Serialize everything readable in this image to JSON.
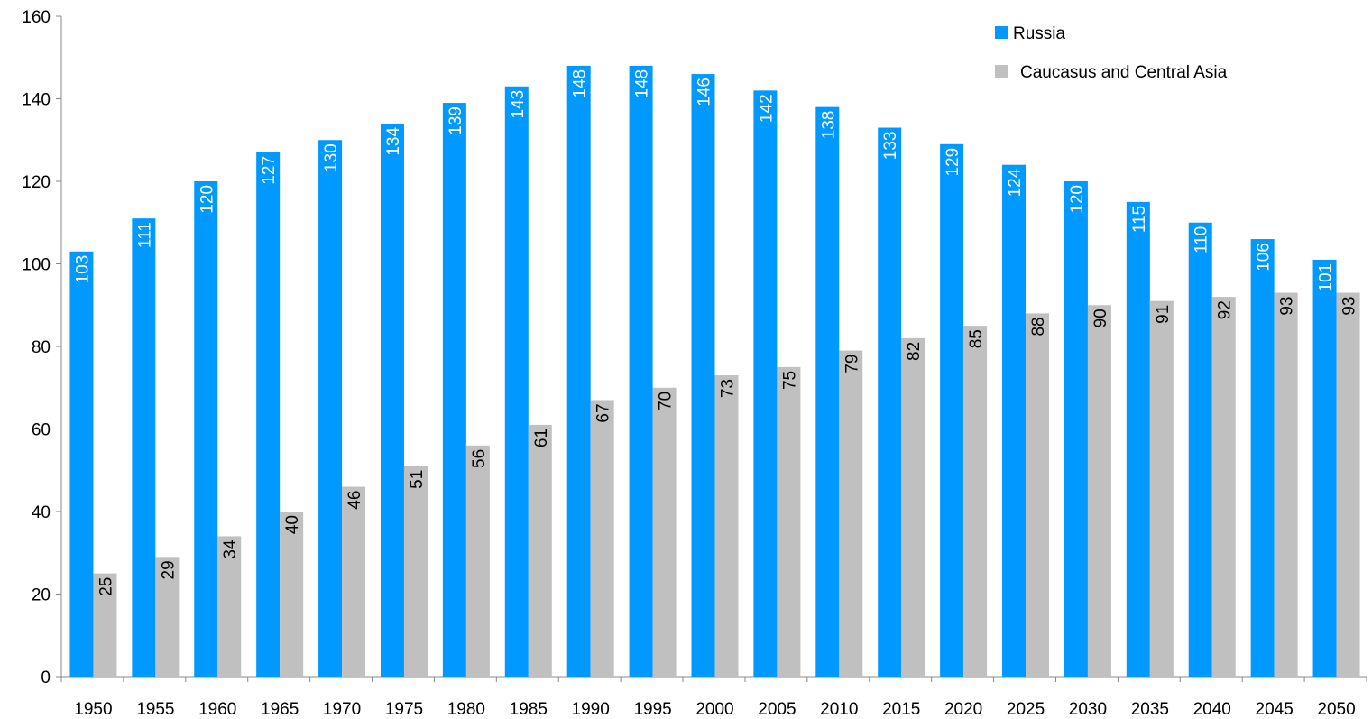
{
  "chart_data": {
    "type": "bar",
    "categories": [
      "1950",
      "1955",
      "1960",
      "1965",
      "1970",
      "1975",
      "1980",
      "1985",
      "1990",
      "1995",
      "2000",
      "2005",
      "2010",
      "2015",
      "2020",
      "2025",
      "2030",
      "2035",
      "2040",
      "2045",
      "2050"
    ],
    "series": [
      {
        "name": "Russia",
        "color": "#0099ff",
        "label_color": "#ffffff",
        "values": [
          103,
          111,
          120,
          127,
          130,
          134,
          139,
          143,
          148,
          148,
          146,
          142,
          138,
          133,
          129,
          124,
          120,
          115,
          110,
          106,
          101
        ]
      },
      {
        "name": "Caucasus and Central Asia",
        "color": "#c0c0c0",
        "label_color": "#000000",
        "values": [
          25,
          29,
          34,
          40,
          46,
          51,
          56,
          61,
          67,
          70,
          73,
          75,
          79,
          82,
          85,
          88,
          90,
          91,
          92,
          93,
          93
        ]
      }
    ],
    "ylim": [
      0,
      160
    ],
    "yticks": [
      0,
      20,
      40,
      60,
      80,
      100,
      120,
      140,
      160
    ],
    "grid": false,
    "legend": "top-right"
  }
}
